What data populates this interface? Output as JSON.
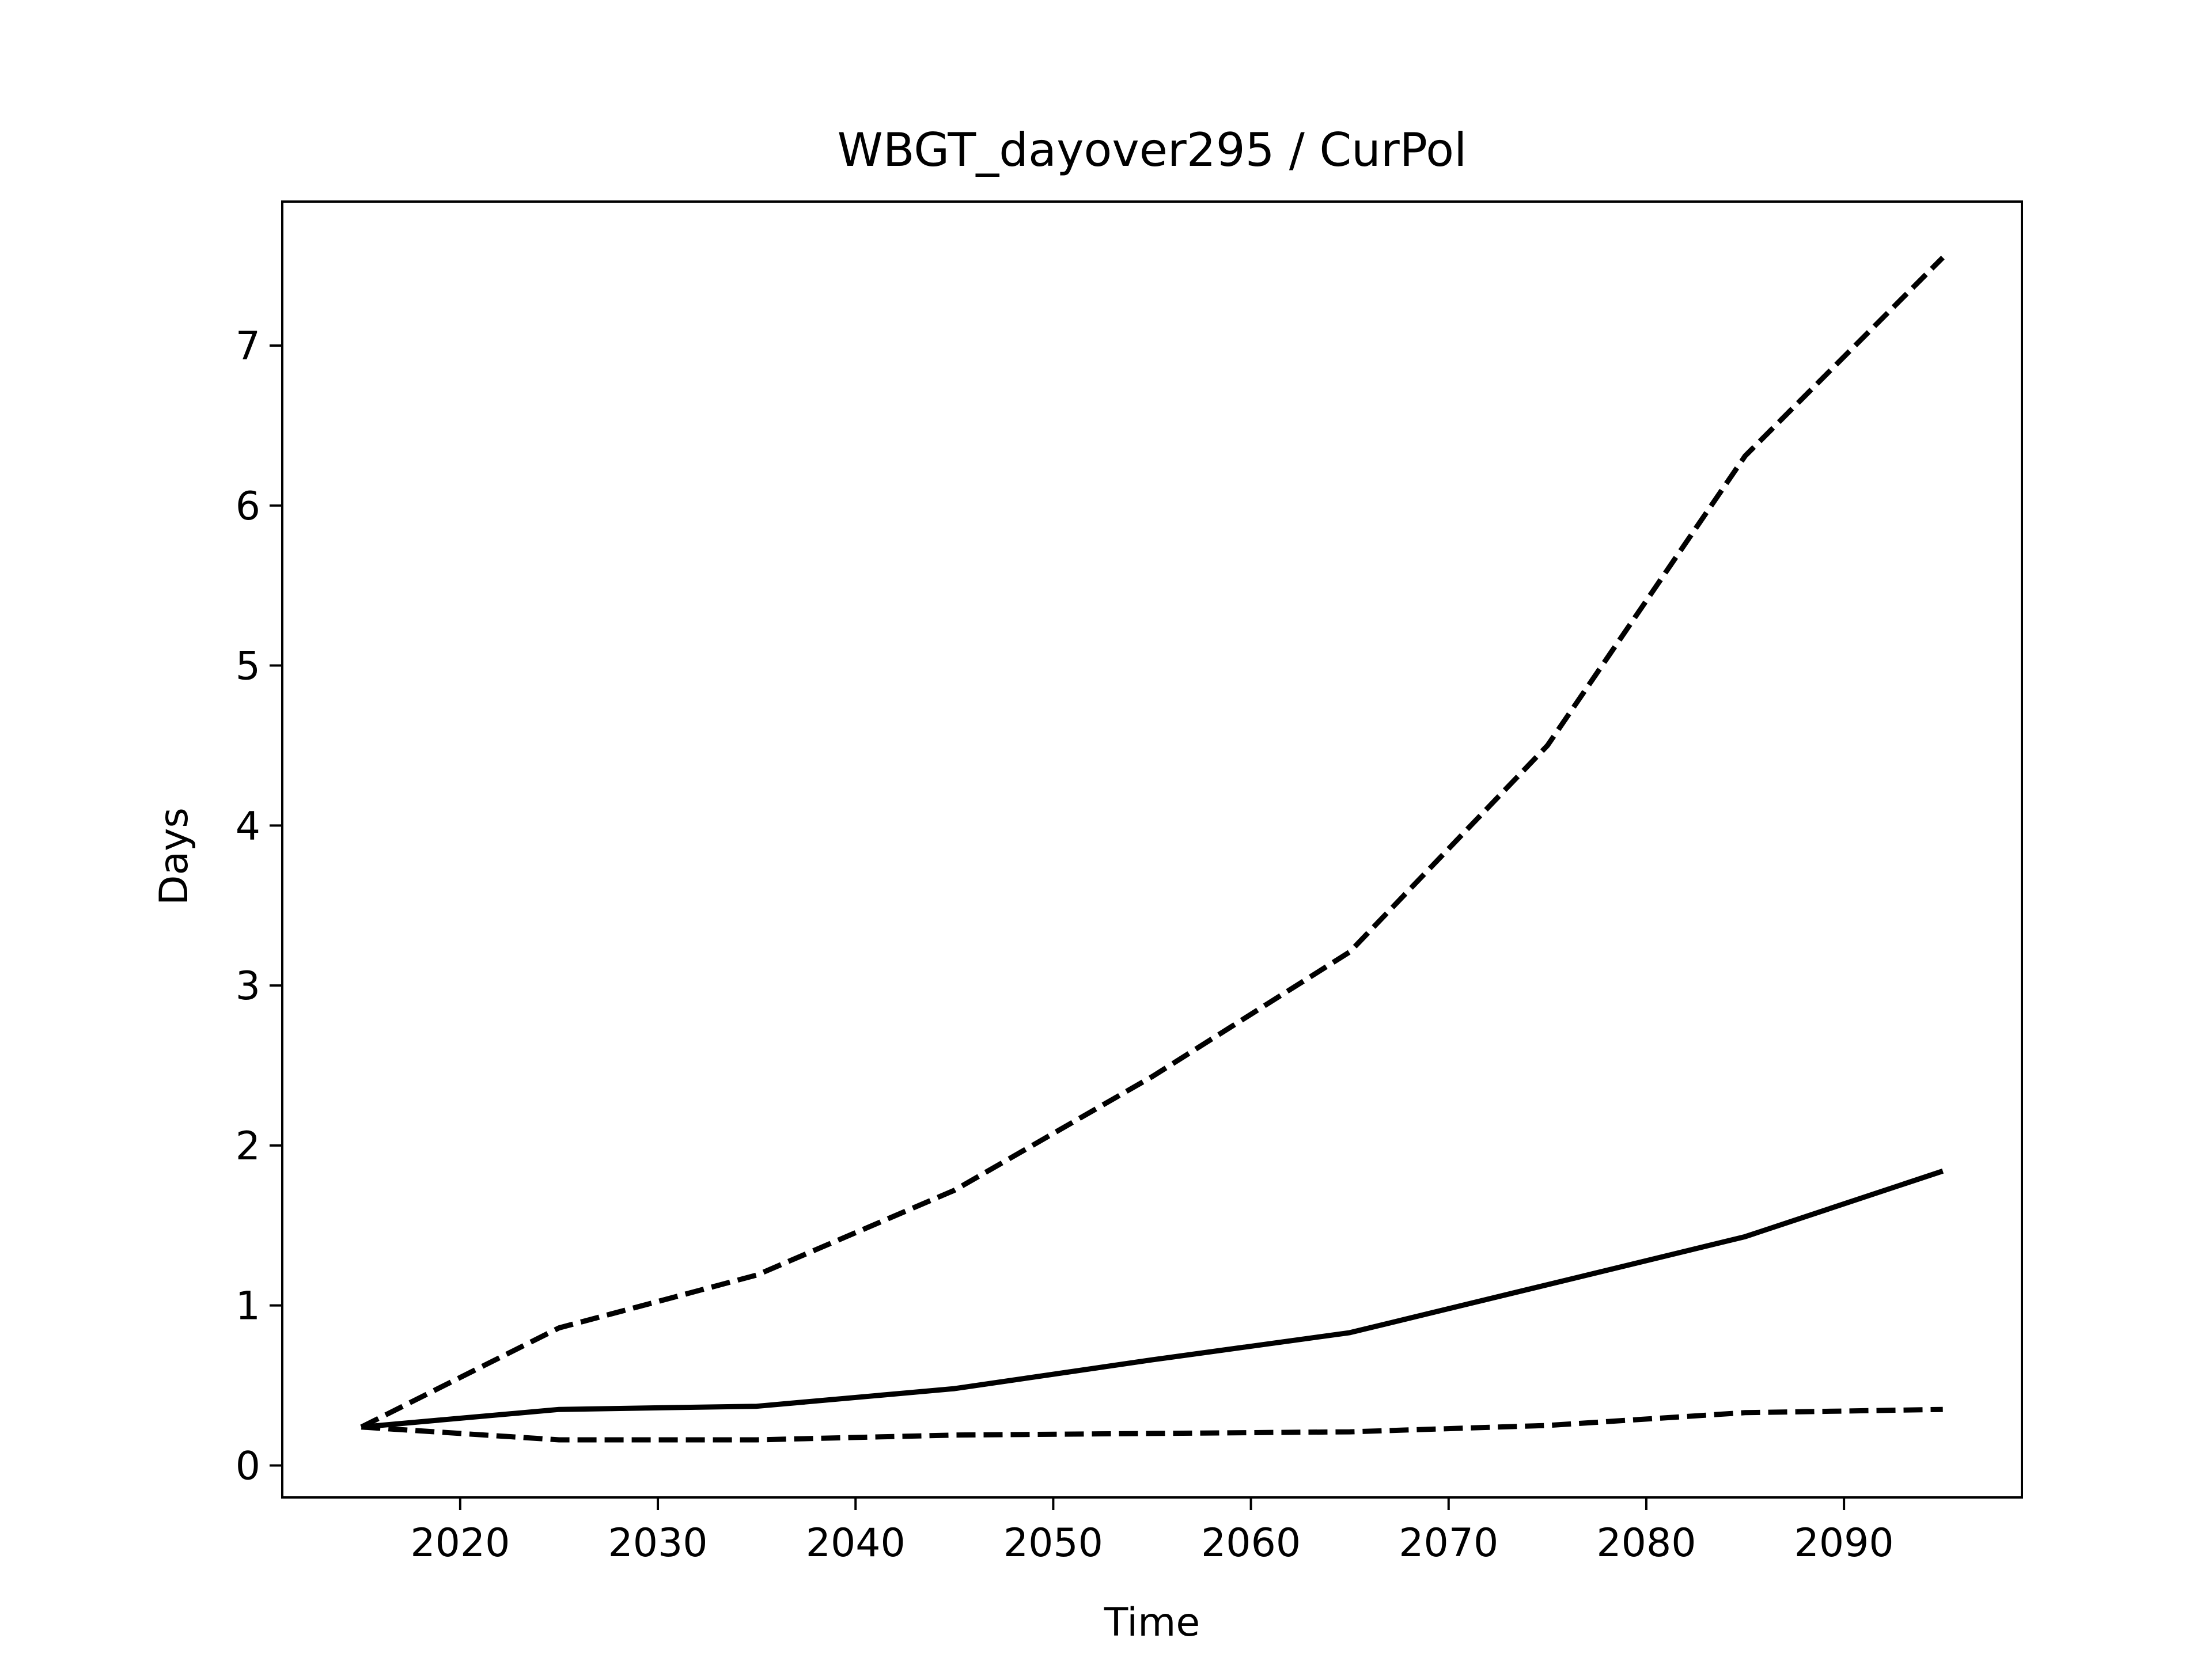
{
  "chart_data": {
    "type": "line",
    "title": "WBGT_dayover295 / CurPol",
    "xlabel": "Time",
    "ylabel": "Days",
    "xlim": [
      2011,
      2099
    ],
    "ylim": [
      -0.2,
      7.9
    ],
    "xticks": [
      2020,
      2030,
      2040,
      2050,
      2060,
      2070,
      2080,
      2090
    ],
    "yticks": [
      0,
      1,
      2,
      3,
      4,
      5,
      6,
      7
    ],
    "grid": false,
    "legend": "none",
    "series": [
      {
        "style": "dashed",
        "color": "#000000",
        "points": [
          [
            2015,
            0.24
          ],
          [
            2025,
            0.86
          ],
          [
            2035,
            1.19
          ],
          [
            2045,
            1.72
          ],
          [
            2055,
            2.43
          ],
          [
            2065,
            3.21
          ],
          [
            2075,
            4.5
          ],
          [
            2085,
            6.31
          ],
          [
            2095,
            7.55
          ]
        ]
      },
      {
        "style": "solid",
        "color": "#000000",
        "points": [
          [
            2015,
            0.24
          ],
          [
            2025,
            0.35
          ],
          [
            2035,
            0.37
          ],
          [
            2045,
            0.48
          ],
          [
            2055,
            0.66
          ],
          [
            2065,
            0.83
          ],
          [
            2075,
            1.13
          ],
          [
            2085,
            1.43
          ],
          [
            2095,
            1.84
          ]
        ]
      },
      {
        "style": "dashed",
        "color": "#000000",
        "points": [
          [
            2015,
            0.24
          ],
          [
            2025,
            0.16
          ],
          [
            2035,
            0.16
          ],
          [
            2045,
            0.19
          ],
          [
            2055,
            0.2
          ],
          [
            2065,
            0.21
          ],
          [
            2075,
            0.25
          ],
          [
            2085,
            0.33
          ],
          [
            2095,
            0.35
          ]
        ]
      }
    ]
  }
}
